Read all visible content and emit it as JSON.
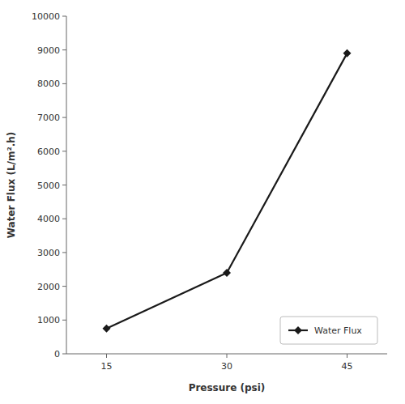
{
  "chart_data": {
    "type": "line",
    "xlabel": "Pressure (psi)",
    "ylabel": "Water Flux (L/m².h)",
    "x": [
      15,
      30,
      45
    ],
    "series": [
      {
        "name": "Water Flux",
        "color": "#1a1a1a",
        "marker": "diamond",
        "values": [
          750,
          2400,
          8900
        ]
      }
    ],
    "xlim": [
      10,
      50
    ],
    "ylim": [
      0,
      10000
    ],
    "xticks": [
      15,
      30,
      45
    ],
    "yticks": [
      0,
      1000,
      2000,
      3000,
      4000,
      5000,
      6000,
      7000,
      8000,
      9000,
      10000
    ],
    "grid": false,
    "legend": "lower right"
  }
}
